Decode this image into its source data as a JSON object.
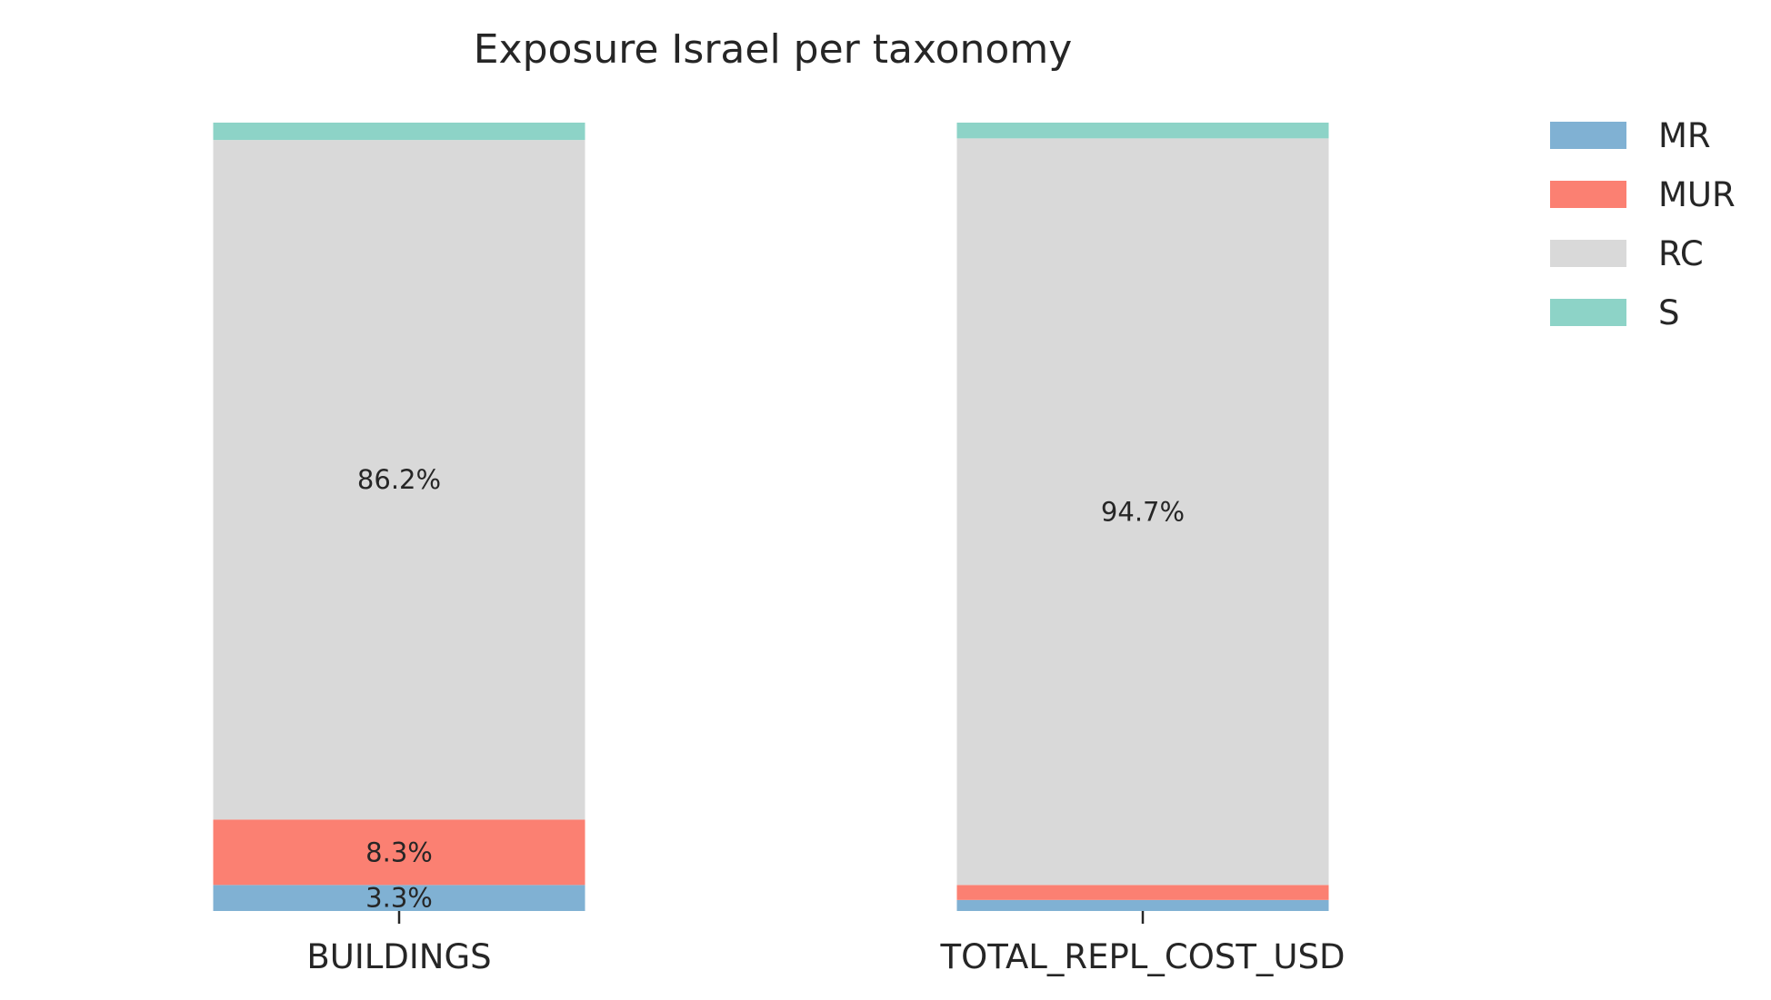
{
  "chart_data": {
    "type": "bar",
    "stacked": true,
    "normalized": true,
    "title": "Exposure Israel per taxonomy",
    "xlabel": "",
    "ylabel": "",
    "ylim": [
      0,
      100
    ],
    "grid": false,
    "legend_position": "top-right",
    "categories": [
      "BUILDINGS",
      "TOTAL_REPL_COST_USD"
    ],
    "series": [
      {
        "name": "MR",
        "color": "#80b1d3",
        "values": [
          3.3,
          1.4
        ],
        "labels": [
          "3.3%",
          ""
        ]
      },
      {
        "name": "MUR",
        "color": "#fb8072",
        "values": [
          8.3,
          1.9
        ],
        "labels": [
          "8.3%",
          ""
        ]
      },
      {
        "name": "RC",
        "color": "#d9d9d9",
        "values": [
          86.2,
          94.7
        ],
        "labels": [
          "86.2%",
          "94.7%"
        ]
      },
      {
        "name": "S",
        "color": "#8dd3c7",
        "values": [
          2.2,
          2.0
        ],
        "labels": [
          "",
          ""
        ]
      }
    ]
  }
}
